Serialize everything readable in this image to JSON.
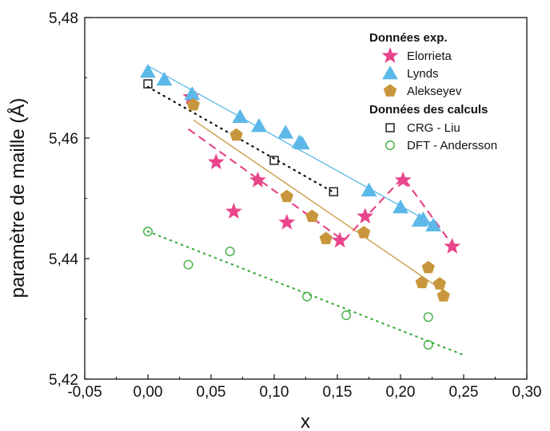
{
  "chart_data": {
    "type": "scatter",
    "title": "",
    "xlabel": "x",
    "ylabel": "paramètre de maille (Å)",
    "xlim": [
      -0.05,
      0.3
    ],
    "ylim": [
      5.42,
      5.48
    ],
    "x_ticks": [
      -0.05,
      0.0,
      0.05,
      0.1,
      0.15,
      0.2,
      0.25,
      0.3
    ],
    "y_ticks": [
      5.42,
      5.44,
      5.46,
      5.48
    ],
    "x_tick_labels": [
      "-0,05",
      "0,00",
      "0,05",
      "0,10",
      "0,15",
      "0,20",
      "0,25",
      "0,30"
    ],
    "y_tick_labels": [
      "5,42",
      "5,44",
      "5,46",
      "5,48"
    ],
    "grid": false,
    "legend_position": "top-right",
    "legend": {
      "group1_title": "Données exp.",
      "group2_title": "Données des calculs"
    },
    "series": [
      {
        "name": "Elorrieta",
        "group": "exp",
        "marker": "star",
        "color": "#e8458b",
        "points": [
          [
            0.034,
            5.4668
          ],
          [
            0.054,
            5.456
          ],
          [
            0.068,
            5.4478
          ],
          [
            0.087,
            5.453
          ],
          [
            0.11,
            5.446
          ],
          [
            0.152,
            5.443
          ],
          [
            0.172,
            5.447
          ],
          [
            0.202,
            5.453
          ],
          [
            0.241,
            5.442
          ]
        ],
        "fit": {
          "style": "dashed",
          "width": 2.2,
          "path": [
            [
              0.032,
              5.4615
            ],
            [
              0.155,
              5.443
            ],
            [
              0.202,
              5.4535
            ],
            [
              0.242,
              5.442
            ]
          ]
        }
      },
      {
        "name": "Lynds",
        "group": "exp",
        "marker": "triangle",
        "color": "#5bb8e8",
        "points": [
          [
            0.0,
            5.471
          ],
          [
            0.013,
            5.4697
          ],
          [
            0.035,
            5.4673
          ],
          [
            0.073,
            5.4635
          ],
          [
            0.088,
            5.462
          ],
          [
            0.109,
            5.4609
          ],
          [
            0.12,
            5.4593
          ],
          [
            0.122,
            5.4591
          ],
          [
            0.175,
            5.4513
          ],
          [
            0.2,
            5.4485
          ],
          [
            0.215,
            5.4463
          ],
          [
            0.218,
            5.4465
          ],
          [
            0.226,
            5.4455
          ]
        ],
        "fit": {
          "style": "solid",
          "width": 1.3,
          "path": [
            [
              0.0,
              5.472
            ],
            [
              0.228,
              5.4455
            ]
          ]
        }
      },
      {
        "name": "Alekseyev",
        "group": "exp",
        "marker": "pentagon",
        "color": "#c8963c",
        "points": [
          [
            0.036,
            5.4655
          ],
          [
            0.07,
            5.4605
          ],
          [
            0.11,
            5.4503
          ],
          [
            0.13,
            5.447
          ],
          [
            0.141,
            5.4433
          ],
          [
            0.171,
            5.4443
          ],
          [
            0.217,
            5.436
          ],
          [
            0.222,
            5.4385
          ],
          [
            0.231,
            5.4358
          ],
          [
            0.234,
            5.4338
          ]
        ],
        "fit": {
          "style": "solid",
          "width": 1.3,
          "path": [
            [
              0.036,
              5.463
            ],
            [
              0.237,
              5.4342
            ]
          ]
        }
      },
      {
        "name": "CRG - Liu",
        "group": "calc",
        "marker": "square-open",
        "color": "#111111",
        "points": [
          [
            0.0,
            5.469
          ],
          [
            0.1,
            5.4563
          ],
          [
            0.147,
            5.4511
          ]
        ],
        "fit": {
          "style": "dotted",
          "width": 2.2,
          "path": [
            [
              0.0,
              5.4685
            ],
            [
              0.147,
              5.451
            ]
          ]
        }
      },
      {
        "name": "DFT - Andersson",
        "group": "calc",
        "marker": "circle-open",
        "color": "#3fae3f",
        "points": [
          [
            0.0,
            5.4445
          ],
          [
            0.032,
            5.439
          ],
          [
            0.065,
            5.4412
          ],
          [
            0.126,
            5.4337
          ],
          [
            0.157,
            5.4306
          ],
          [
            0.222,
            5.4303
          ],
          [
            0.222,
            5.4257
          ]
        ],
        "fit": {
          "style": "dotted",
          "width": 2.2,
          "path": [
            [
              0.0,
              5.4445
            ],
            [
              0.25,
              5.424
            ]
          ]
        }
      }
    ]
  }
}
